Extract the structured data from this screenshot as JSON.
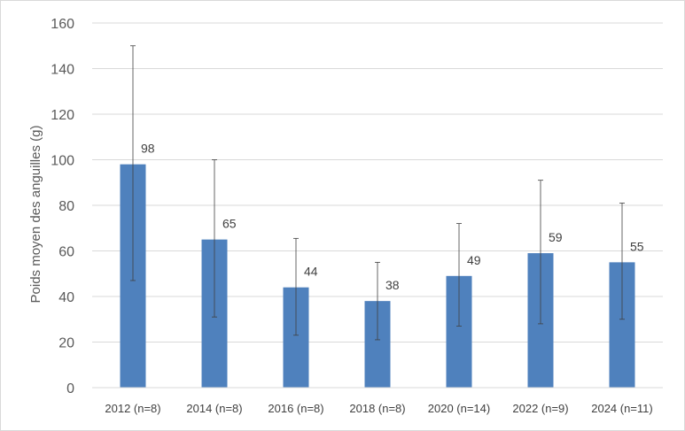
{
  "chart_data": {
    "type": "bar",
    "title": "",
    "xlabel": "",
    "ylabel": "Poids moyen des anguilles (g)",
    "ylim": [
      0,
      160
    ],
    "yticks": [
      0,
      20,
      40,
      60,
      80,
      100,
      120,
      140,
      160
    ],
    "grid": true,
    "legend": "none",
    "categories": [
      "2012 (n=8)",
      "2014 (n=8)",
      "2016 (n=8)",
      "2018 (n=8)",
      "2020 (n=14)",
      "2022 (n=9)",
      "2024 (n=11)"
    ],
    "values": [
      98,
      65,
      44,
      38,
      49,
      59,
      55
    ],
    "error_low": [
      47,
      31,
      23,
      21,
      27,
      28,
      30
    ],
    "error_high": [
      150,
      100,
      65.5,
      55,
      72,
      91,
      81
    ],
    "bar_color": "#4f81bd",
    "error_bar_color": "#404040",
    "grid_color": "#d9d9d9"
  }
}
